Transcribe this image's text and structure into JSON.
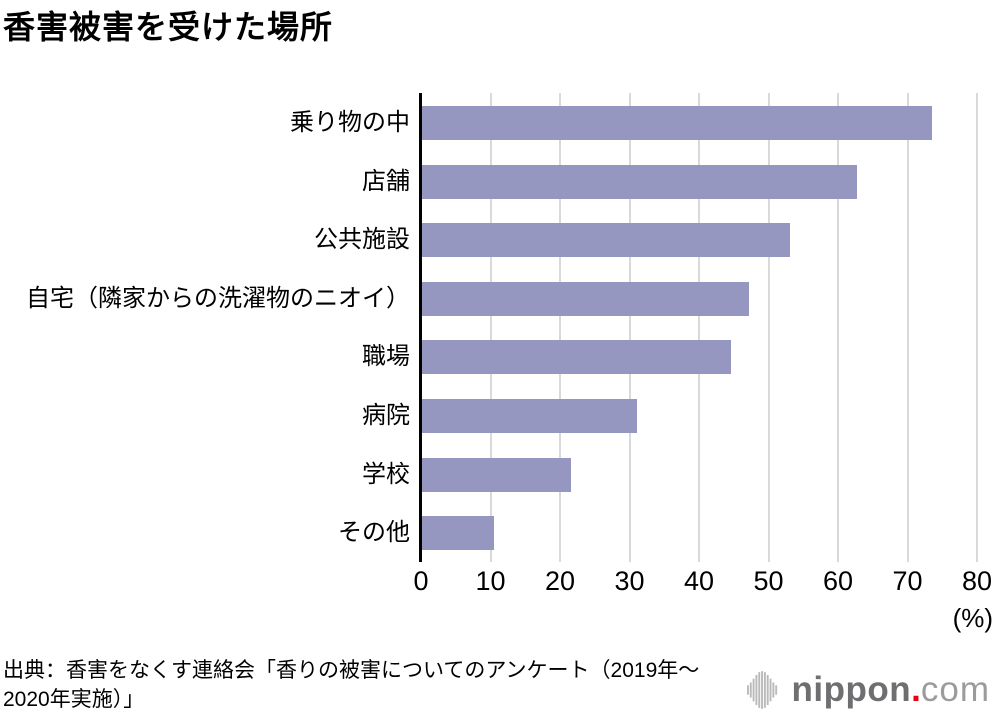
{
  "title": "香害被害を受けた場所",
  "chart_data": {
    "type": "bar",
    "orientation": "horizontal",
    "title": "香害被害を受けた場所",
    "categories": [
      "乗り物の中",
      "店舗",
      "公共施設",
      "自宅（隣家からの洗濯物のニオイ）",
      "職場",
      "病院",
      "学校",
      "その他"
    ],
    "values": [
      73.4,
      62.6,
      53.0,
      47.1,
      44.4,
      31.0,
      21.4,
      10.4
    ],
    "xlabel": "(%)",
    "xlim": [
      0,
      80
    ],
    "xticks": [
      0,
      10,
      20,
      30,
      40,
      50,
      60,
      70,
      80
    ],
    "grid": true,
    "legend": false,
    "bar_color": "#9597c0",
    "gridline_color": "#d9d9d9",
    "axis_color": "#000000"
  },
  "source_note": "出典：香害をなくす連絡会「香りの被害についてのアンケート（2019年～\n2020年実施）」",
  "logo": {
    "name": "nippon",
    "dot": ".",
    "tld": "com",
    "brand_red": "#e60012",
    "icon": "soundbars-icon"
  }
}
